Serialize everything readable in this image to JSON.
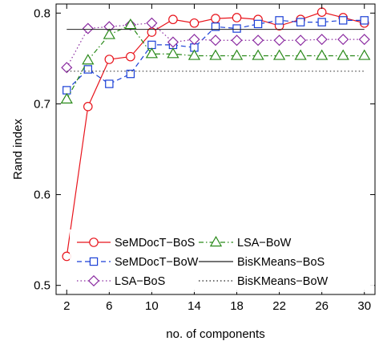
{
  "chart_data": {
    "type": "line",
    "title": "",
    "xlabel": "no. of components",
    "ylabel": "Rand index",
    "xlim": [
      1,
      31
    ],
    "ylim": [
      0.49,
      0.81
    ],
    "xticks": [
      2,
      6,
      10,
      14,
      18,
      22,
      26,
      30
    ],
    "yticks": [
      0.5,
      0.6,
      0.7,
      0.8
    ],
    "ytick_labels": [
      "0.5",
      "0.6",
      "0.7",
      "0.8"
    ],
    "grid": false,
    "legend_position": "bottom",
    "x": [
      2,
      4,
      6,
      8,
      10,
      12,
      14,
      16,
      18,
      20,
      22,
      24,
      26,
      28,
      30
    ],
    "series": [
      {
        "name": "SeMDocT−BoS",
        "color": "#e8141c",
        "line": "solid",
        "marker": "circle",
        "values": [
          0.532,
          0.697,
          0.749,
          0.752,
          0.779,
          0.793,
          0.789,
          0.794,
          0.795,
          0.793,
          0.786,
          0.793,
          0.801,
          0.795,
          0.789
        ]
      },
      {
        "name": "SeMDocT−BoW",
        "color": "#1a3fd6",
        "line": "dashed",
        "marker": "square",
        "values": [
          0.715,
          0.738,
          0.722,
          0.733,
          0.765,
          0.765,
          0.762,
          0.785,
          0.783,
          0.788,
          0.792,
          0.79,
          0.79,
          0.792,
          0.792
        ]
      },
      {
        "name": "LSA−BoS",
        "color": "#8a2aa0",
        "line": "dotted",
        "marker": "diamond",
        "values": [
          0.74,
          0.783,
          0.785,
          0.787,
          0.789,
          0.768,
          0.771,
          0.77,
          0.77,
          0.77,
          0.77,
          0.77,
          0.771,
          0.771,
          0.771
        ]
      },
      {
        "name": "LSA−BoW",
        "color": "#2a8a1a",
        "line": "dashdot",
        "marker": "triangle",
        "values": [
          0.705,
          0.748,
          0.776,
          0.787,
          0.755,
          0.755,
          0.753,
          0.753,
          0.753,
          0.753,
          0.753,
          0.753,
          0.753,
          0.753,
          0.753
        ]
      },
      {
        "name": "BisKMeans−BoS",
        "color": "#222222",
        "line": "solid",
        "marker": "none",
        "constant": 0.782
      },
      {
        "name": "BisKMeans−BoW",
        "color": "#222222",
        "line": "dotted",
        "marker": "none",
        "constant": 0.736
      }
    ]
  }
}
